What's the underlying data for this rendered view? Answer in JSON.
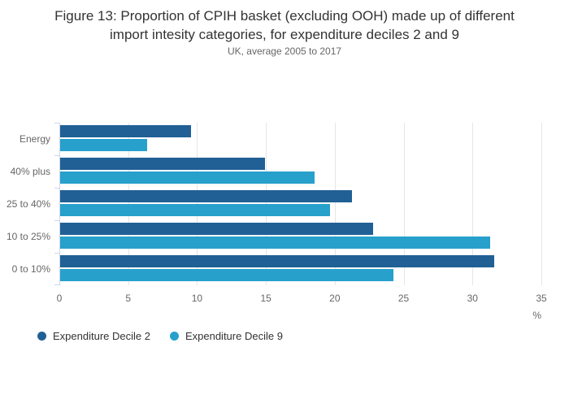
{
  "header": {
    "title_lines": [
      "Figure 13: Proportion of CPIH basket (excluding OOH) made up of different",
      "import intesity categories, for expenditure deciles 2 and 9"
    ],
    "subtitle": "UK, average 2005 to 2017"
  },
  "chart_data": {
    "type": "bar",
    "orientation": "horizontal",
    "title": "Figure 13: Proportion of CPIH basket (excluding OOH) made up of different import intesity categories, for expenditure deciles 2 and 9",
    "subtitle": "UK, average 2005 to 2017",
    "categories": [
      "Energy",
      "40% plus",
      "25 to 40%",
      "10 to 25%",
      "0 to 10%"
    ],
    "series": [
      {
        "name": "Expenditure Decile 2",
        "color": "#206095",
        "values": [
          9.5,
          14.9,
          21.2,
          22.7,
          31.5
        ]
      },
      {
        "name": "Expenditure Decile 9",
        "color": "#27a0cc",
        "values": [
          6.3,
          18.5,
          19.6,
          31.2,
          24.2
        ]
      }
    ],
    "xlabel": "%",
    "ylabel": "",
    "x_ticks": [
      0,
      5,
      10,
      15,
      20,
      25,
      30,
      35
    ],
    "xlim": [
      0,
      35
    ],
    "grid": true,
    "legend_position": "bottom-left"
  },
  "colors": {
    "series_dark": "#206095",
    "series_light": "#27a0cc",
    "gridline": "#e6e6e6",
    "axis_line": "#ccd6eb",
    "title_text": "#333333",
    "muted_text": "#666666"
  }
}
